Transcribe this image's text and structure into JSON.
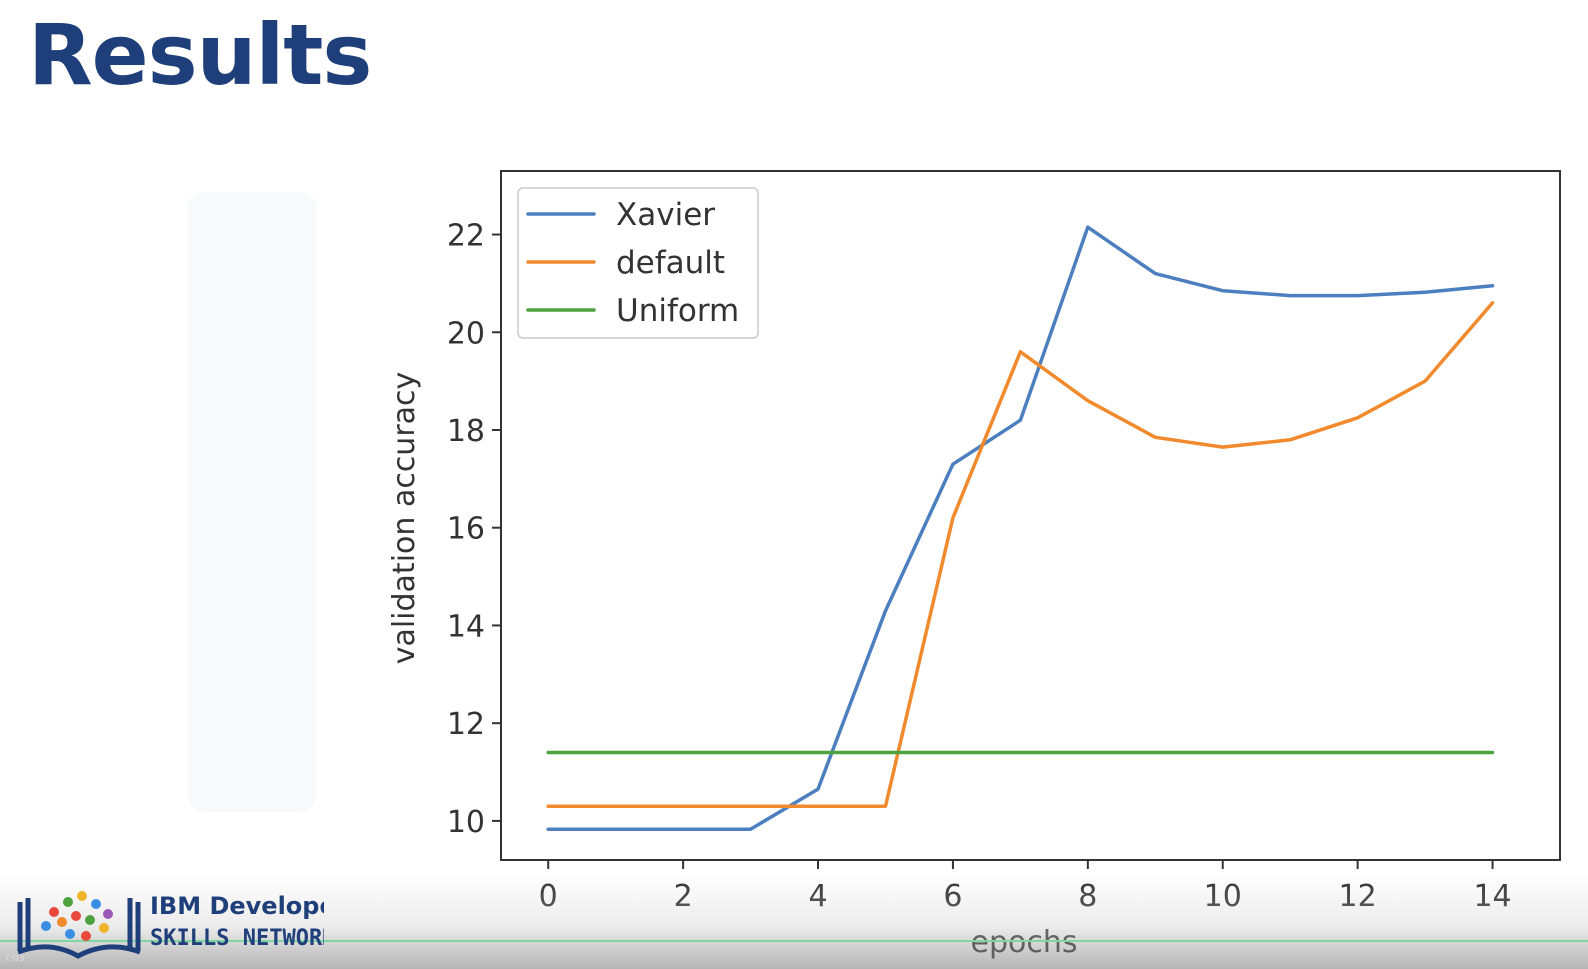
{
  "slide": {
    "title": "Results"
  },
  "footer": {
    "logo_line1": "IBM Developer",
    "logo_line2": "SKILLS NETWORK",
    "timestamp": "7:03"
  },
  "chart_data": {
    "type": "line",
    "title": "",
    "xlabel": "epochs",
    "ylabel": "validation accuracy",
    "xlim": [
      -0.7,
      15
    ],
    "ylim": [
      9.2,
      23.3
    ],
    "xticks": [
      0,
      2,
      4,
      6,
      8,
      10,
      12,
      14
    ],
    "yticks": [
      10,
      12,
      14,
      16,
      18,
      20,
      22
    ],
    "legend_position": "top-left",
    "grid": false,
    "x": [
      0,
      1,
      2,
      3,
      4,
      5,
      6,
      7,
      8,
      9,
      10,
      11,
      12,
      13,
      14
    ],
    "series": [
      {
        "name": "Xavier",
        "color": "#4c7fbf",
        "values": [
          9.83,
          9.83,
          9.83,
          9.83,
          10.65,
          14.3,
          17.3,
          18.2,
          22.15,
          21.2,
          20.85,
          20.75,
          20.75,
          20.82,
          20.95
        ]
      },
      {
        "name": "default",
        "color": "#f08a2c",
        "values": [
          10.3,
          10.3,
          10.3,
          10.3,
          10.3,
          10.3,
          16.2,
          19.6,
          18.6,
          17.85,
          17.65,
          17.8,
          18.25,
          19.0,
          20.6
        ]
      },
      {
        "name": "Uniform",
        "color": "#4ea33e",
        "values": [
          11.4,
          11.4,
          11.4,
          11.4,
          11.4,
          11.4,
          11.4,
          11.4,
          11.4,
          11.4,
          11.4,
          11.4,
          11.4,
          11.4,
          11.4
        ]
      }
    ]
  }
}
